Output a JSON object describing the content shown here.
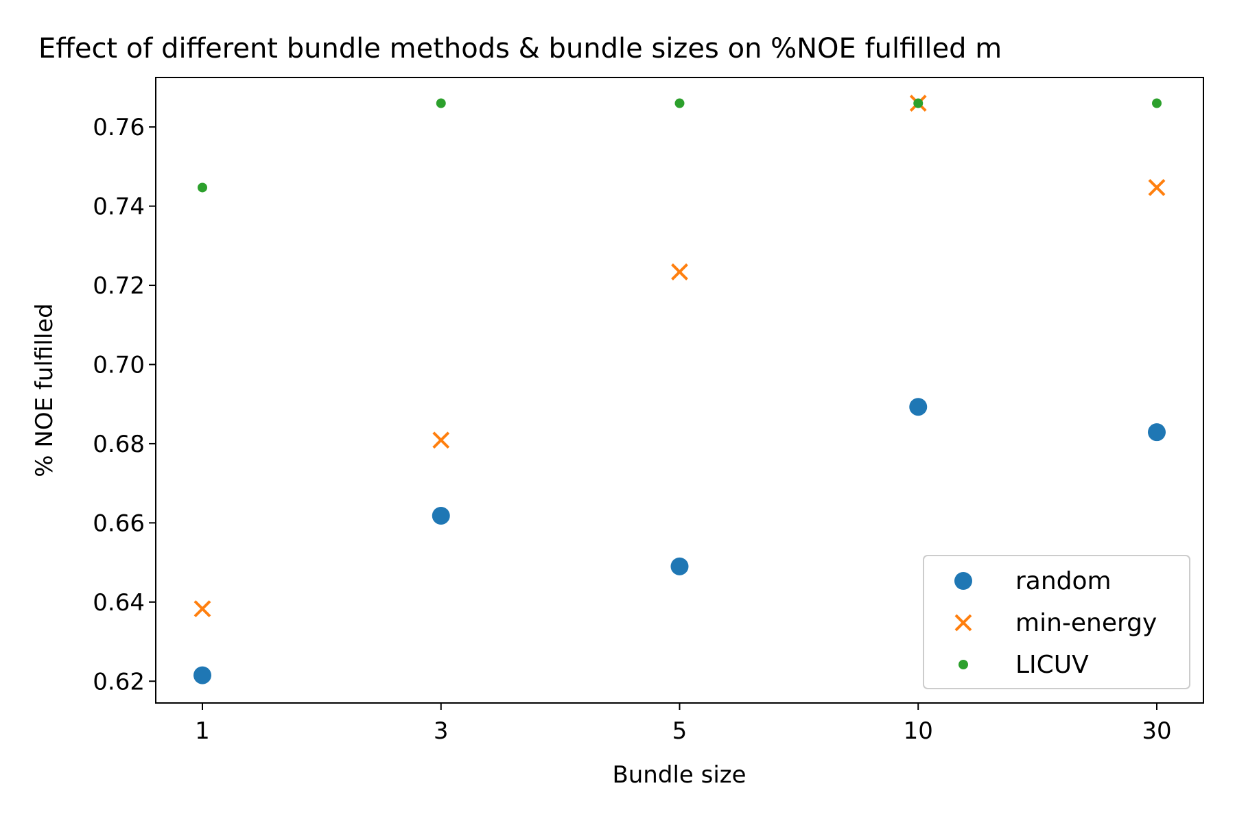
{
  "chart_data": {
    "type": "scatter",
    "title": "Effect of different bundle methods & bundle sizes on %NOE fulfilled m",
    "xlabel": "Bundle size",
    "ylabel": "% NOE fulfilled",
    "categories": [
      "1",
      "3",
      "5",
      "10",
      "30"
    ],
    "ylim": [
      0.6145,
      0.7725
    ],
    "yticks": [
      0.62,
      0.64,
      0.66,
      0.68,
      0.7,
      0.72,
      0.74,
      0.76
    ],
    "ytick_labels": [
      "0.62",
      "0.64",
      "0.66",
      "0.68",
      "0.70",
      "0.72",
      "0.74",
      "0.76"
    ],
    "grid": false,
    "legend_position": "bottom-right",
    "series": [
      {
        "name": "random",
        "marker": "circle",
        "color": "#1f77b4",
        "values": [
          0.6215,
          0.6618,
          0.649,
          0.6893,
          0.6829
        ]
      },
      {
        "name": "min-energy",
        "marker": "x",
        "color": "#ff7f0e",
        "values": [
          0.6383,
          0.6809,
          0.7234,
          0.766,
          0.7447
        ]
      },
      {
        "name": "LICUV",
        "marker": "small-circle",
        "color": "#2ca02c",
        "values": [
          0.7447,
          0.766,
          0.766,
          0.766,
          0.766
        ]
      }
    ]
  }
}
